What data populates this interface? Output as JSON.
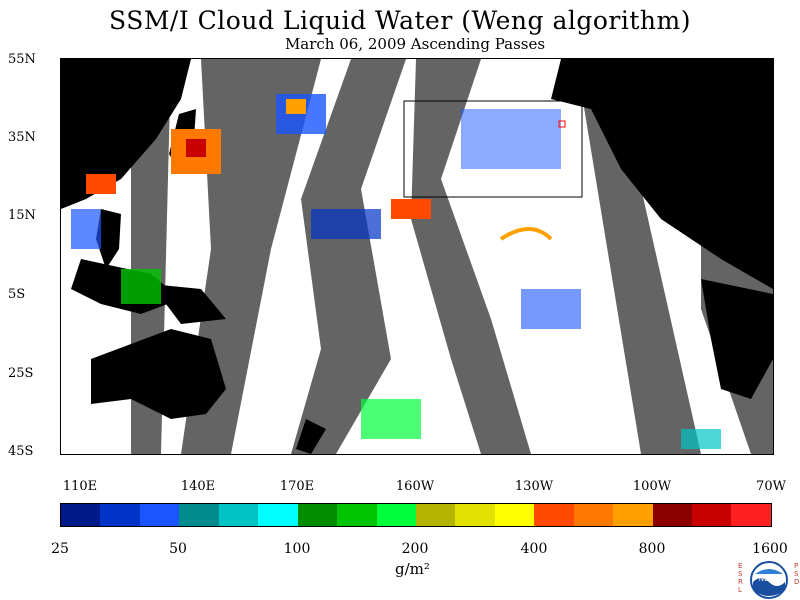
{
  "title": "SSM/I Cloud Liquid Water (Weng algorithm)",
  "subtitle": "March 06, 2009  Ascending Passes",
  "lat_labels": [
    "55N",
    "35N",
    "15N",
    "5S",
    "25S",
    "45S"
  ],
  "lon_labels": [
    "110E",
    "140E",
    "170E",
    "160W",
    "130W",
    "100W",
    "70W"
  ],
  "colorbar": {
    "colors": [
      "#001a8a",
      "#0033c8",
      "#1a55ff",
      "#008c8c",
      "#00c4c4",
      "#00ffff",
      "#008c00",
      "#00c400",
      "#00ff3a",
      "#b4b400",
      "#e2e200",
      "#ffff00",
      "#ff4a00",
      "#ff7800",
      "#ffa000",
      "#8c0000",
      "#c80000",
      "#ff2020"
    ],
    "tick_labels": [
      "25",
      "50",
      "100",
      "200",
      "400",
      "800",
      "1600"
    ],
    "unit": "g/m²"
  },
  "logo": {
    "left_letters": "ESRL",
    "right_letters": "PSD",
    "emblem_text": "NOAA"
  },
  "colors": {
    "land": "#000000",
    "no_data": "#646464",
    "ocean_clear": "#ffffff"
  }
}
